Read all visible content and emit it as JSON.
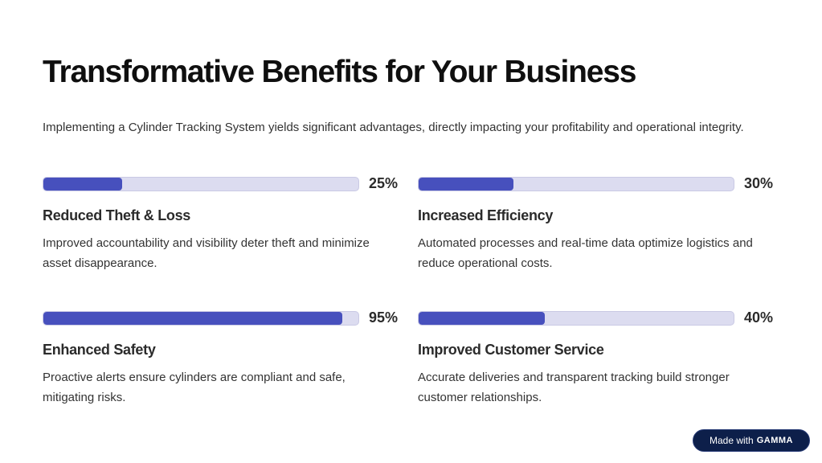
{
  "title": "Transformative Benefits for Your Business",
  "subtitle": "Implementing a Cylinder Tracking System yields significant advantages, directly impacting your profitability and operational integrity.",
  "benefits": [
    {
      "percent_label": "25%",
      "value": 25,
      "title": "Reduced Theft & Loss",
      "description": "Improved accountability and visibility deter theft and minimize asset disappearance."
    },
    {
      "percent_label": "30%",
      "value": 30,
      "title": "Increased Efficiency",
      "description": "Automated processes and real-time data optimize logistics and reduce operational costs."
    },
    {
      "percent_label": "95%",
      "value": 95,
      "title": "Enhanced Safety",
      "description": "Proactive alerts ensure cylinders are compliant and safe, mitigating risks."
    },
    {
      "percent_label": "40%",
      "value": 40,
      "title": "Improved Customer Service",
      "description": "Accurate deliveries and transparent tracking build stronger customer relationships."
    }
  ],
  "badge": {
    "prefix": "Made with",
    "brand": "GAMMA"
  },
  "colors": {
    "bar_fill": "#4750bd",
    "bar_track": "#dcdcf0",
    "badge_bg": "#0d1f4a"
  }
}
